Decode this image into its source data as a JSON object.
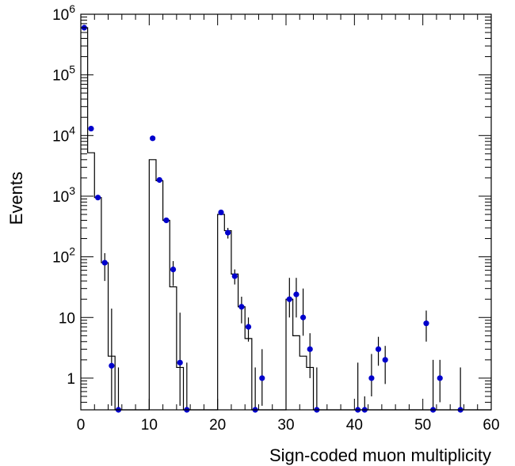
{
  "chart_data": {
    "type": "histogram",
    "xlabel": "Sign-coded muon multiplicity",
    "ylabel": "Events",
    "xlim": [
      0,
      60
    ],
    "ylim": [
      0.3,
      1000000
    ],
    "yscale": "log",
    "grid": false,
    "x_ticks": [
      "0",
      "10",
      "20",
      "30",
      "40",
      "50",
      "60"
    ],
    "y_ticks": [
      {
        "value": 1,
        "label": "1"
      },
      {
        "value": 10,
        "label": "10"
      },
      {
        "value": 100,
        "label": "10^2"
      },
      {
        "value": 1000,
        "label": "10^3"
      },
      {
        "value": 10000,
        "label": "10^4"
      },
      {
        "value": 100000,
        "label": "10^5"
      },
      {
        "value": 1000000,
        "label": "10^6"
      }
    ],
    "series": [
      {
        "kind": "step",
        "color": "#000000",
        "bin_edges": [
          0,
          1,
          2,
          3,
          4,
          5,
          6,
          7,
          8,
          9,
          10,
          11,
          12,
          13,
          14,
          15,
          16,
          17,
          18,
          19,
          20,
          21,
          22,
          23,
          24,
          25,
          26,
          27,
          28,
          29,
          30,
          31,
          32,
          33,
          34,
          35,
          36,
          37,
          38,
          39,
          40,
          41,
          42,
          43,
          44,
          45,
          46,
          47,
          48,
          49,
          50,
          51,
          52,
          53,
          54,
          55,
          56,
          57,
          58,
          59,
          60
        ],
        "values": [
          600000,
          5200,
          950,
          80,
          2.3,
          0.3,
          0.3,
          0.3,
          0.3,
          0.3,
          4000,
          1800,
          400,
          32,
          1.5,
          0.3,
          0.3,
          0.3,
          0.3,
          0.3,
          500,
          270,
          52,
          15,
          4.5,
          0.3,
          0.3,
          0.3,
          0.3,
          0.3,
          20,
          5,
          2.3,
          1.5,
          0.3,
          0.3,
          0.3,
          0.3,
          0.3,
          0.3,
          0.3,
          0.3,
          0.3,
          0.3,
          0.3,
          0.3,
          0.3,
          0.3,
          0.3,
          0.3,
          0.3,
          0.3,
          0.3,
          0.3,
          0.3,
          0.3,
          0.3,
          0.3,
          0.3,
          0.3
        ]
      },
      {
        "kind": "points",
        "color": "#0000cc",
        "points": [
          {
            "x": 0.5,
            "y": 600000
          },
          {
            "x": 1.5,
            "y": 13000
          },
          {
            "x": 2.5,
            "y": 950
          },
          {
            "x": 3.5,
            "y": 80,
            "lo": 40,
            "hi": 115
          },
          {
            "x": 4.5,
            "y": 1.6,
            "lo": 0.35,
            "hi": 14
          },
          {
            "x": 5.5,
            "y": 0.3,
            "lo": 0.3,
            "hi": 1.5
          },
          {
            "x": 10.5,
            "y": 9000
          },
          {
            "x": 11.5,
            "y": 1850
          },
          {
            "x": 12.5,
            "y": 400
          },
          {
            "x": 13.5,
            "y": 62,
            "lo": 33,
            "hi": 85
          },
          {
            "x": 14.5,
            "y": 1.8,
            "lo": 0.35,
            "hi": 12
          },
          {
            "x": 15.5,
            "y": 0.3,
            "lo": 0.3,
            "hi": 1.8
          },
          {
            "x": 20.5,
            "y": 540
          },
          {
            "x": 21.5,
            "y": 250,
            "lo": 200,
            "hi": 300
          },
          {
            "x": 22.5,
            "y": 48,
            "lo": 35,
            "hi": 62
          },
          {
            "x": 23.5,
            "y": 15,
            "lo": 8,
            "hi": 22
          },
          {
            "x": 24.5,
            "y": 7,
            "lo": 4,
            "hi": 10
          },
          {
            "x": 25.5,
            "y": 0.3,
            "lo": 0.3,
            "hi": 1.5
          },
          {
            "x": 26.5,
            "y": 1,
            "lo": 0.35,
            "hi": 3
          },
          {
            "x": 30.5,
            "y": 20,
            "lo": 10,
            "hi": 45
          },
          {
            "x": 31.5,
            "y": 24,
            "lo": 10,
            "hi": 45
          },
          {
            "x": 32.5,
            "y": 10,
            "lo": 5,
            "hi": 30
          },
          {
            "x": 33.5,
            "y": 3,
            "lo": 1,
            "hi": 5.5
          },
          {
            "x": 34.5,
            "y": 0.3,
            "lo": 0.3,
            "hi": 1.5
          },
          {
            "x": 40.5,
            "y": 0.3,
            "lo": 0.3,
            "hi": 1.8
          },
          {
            "x": 41.5,
            "y": 0.3,
            "lo": 0.3,
            "hi": 0.5
          },
          {
            "x": 42.5,
            "y": 1,
            "lo": 0.5,
            "hi": 2.5
          },
          {
            "x": 43.5,
            "y": 3,
            "lo": 1.6,
            "hi": 4.8
          },
          {
            "x": 44.5,
            "y": 2,
            "lo": 0.8,
            "hi": 3.4
          },
          {
            "x": 50.5,
            "y": 8,
            "lo": 4,
            "hi": 13
          },
          {
            "x": 51.5,
            "y": 0.3,
            "lo": 0.3,
            "hi": 2
          },
          {
            "x": 52.5,
            "y": 1,
            "lo": 0.4,
            "hi": 2
          },
          {
            "x": 55.5,
            "y": 0.3,
            "lo": 0.3,
            "hi": 1.5
          }
        ]
      }
    ]
  }
}
